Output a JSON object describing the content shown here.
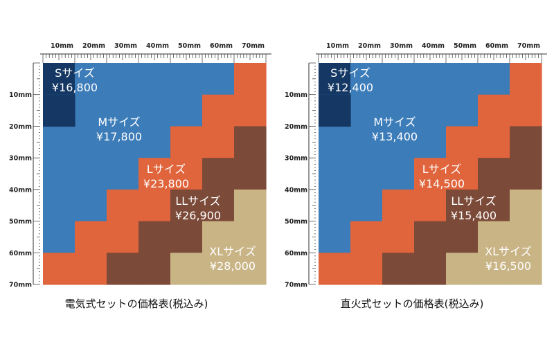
{
  "colors": {
    "s": "#143763",
    "m": "#3c7cb9",
    "l": "#e0643c",
    "ll": "#7c4a38",
    "xl": "#c9b486",
    "ruler": "#333333"
  },
  "ruler": {
    "unit": "mm",
    "top_ticks": [
      "10mm",
      "20mm",
      "30mm",
      "40mm",
      "50mm",
      "60mm",
      "70mm"
    ],
    "left_ticks": [
      "10mm",
      "20mm",
      "30mm",
      "40mm",
      "50mm",
      "60mm",
      "70mm"
    ]
  },
  "charts": [
    {
      "caption": "電気式セットの価格表(税込み)",
      "sizes": {
        "s": {
          "name": "Sサイズ",
          "price": "¥16,800"
        },
        "m": {
          "name": "Mサイズ",
          "price": "¥17,800"
        },
        "l": {
          "name": "Lサイズ",
          "price": "¥23,800"
        },
        "ll": {
          "name": "LLサイズ",
          "price": "¥26,900"
        },
        "xl": {
          "name": "XLサイズ",
          "price": "¥28,000"
        }
      }
    },
    {
      "caption": "直火式セットの価格表(税込み)",
      "sizes": {
        "s": {
          "name": "Sサイズ",
          "price": "¥12,400"
        },
        "m": {
          "name": "Mサイズ",
          "price": "¥13,400"
        },
        "l": {
          "name": "Lサイズ",
          "price": "¥14,500"
        },
        "ll": {
          "name": "LLサイズ",
          "price": "¥15,400"
        },
        "xl": {
          "name": "XLサイズ",
          "price": "¥16,500"
        }
      }
    }
  ]
}
